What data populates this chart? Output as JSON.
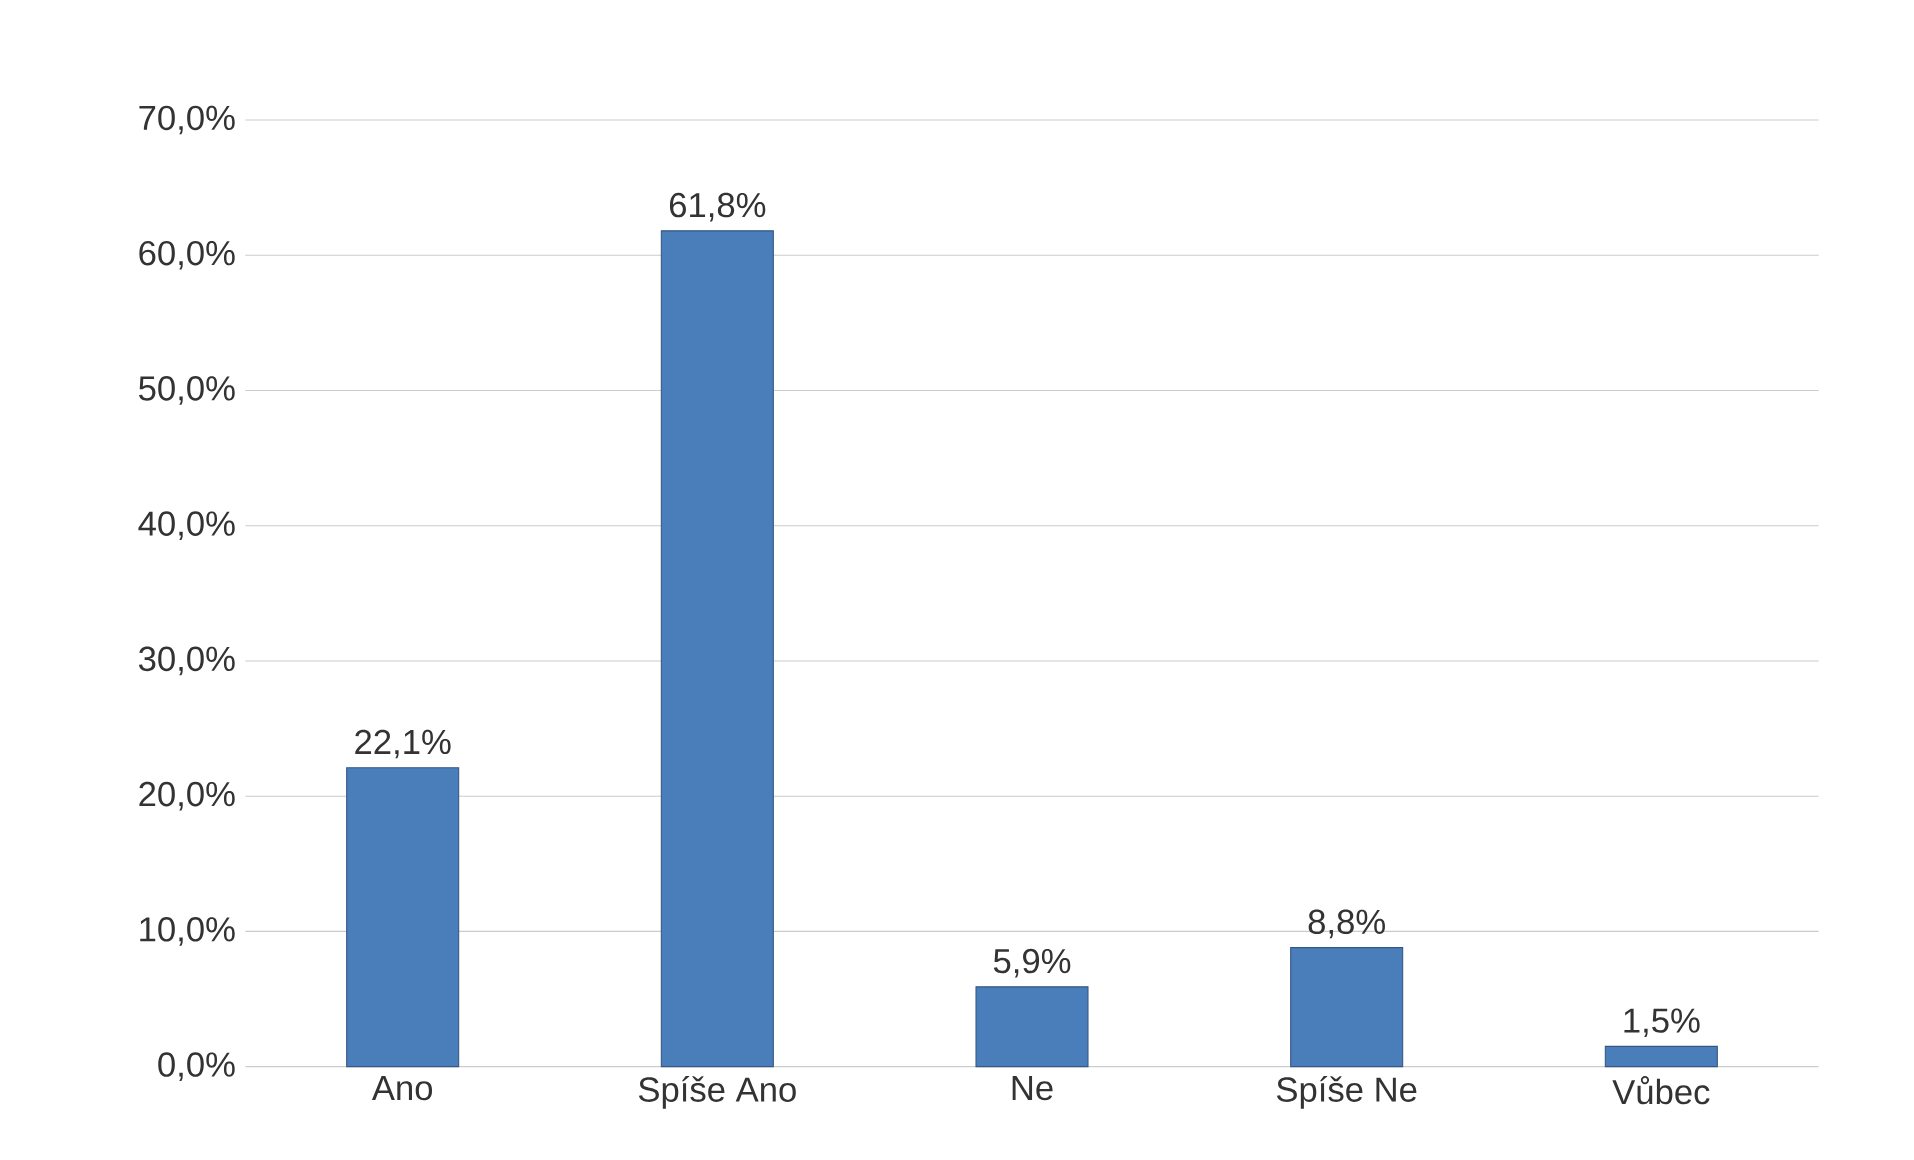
{
  "chart_data": {
    "type": "bar",
    "categories": [
      "Ano",
      "Spíše Ano",
      "Ne",
      "Spíše Ne",
      "Vůbec"
    ],
    "values": [
      22.1,
      61.8,
      5.9,
      8.8,
      1.5
    ],
    "value_labels": [
      "22,1%",
      "61,8%",
      "5,9%",
      "8,8%",
      "1,5%"
    ],
    "color": "#4a7ebb",
    "ylim": [
      0,
      70
    ],
    "yticks": [
      {
        "value": 0,
        "label": "0,0%"
      },
      {
        "value": 10,
        "label": "10,0%"
      },
      {
        "value": 20,
        "label": "20,0%"
      },
      {
        "value": 30,
        "label": "30,0%"
      },
      {
        "value": 40,
        "label": "40,0%"
      },
      {
        "value": 50,
        "label": "50,0%"
      },
      {
        "value": 60,
        "label": "60,0%"
      },
      {
        "value": 70,
        "label": "70,0%"
      }
    ],
    "grid": "y"
  }
}
